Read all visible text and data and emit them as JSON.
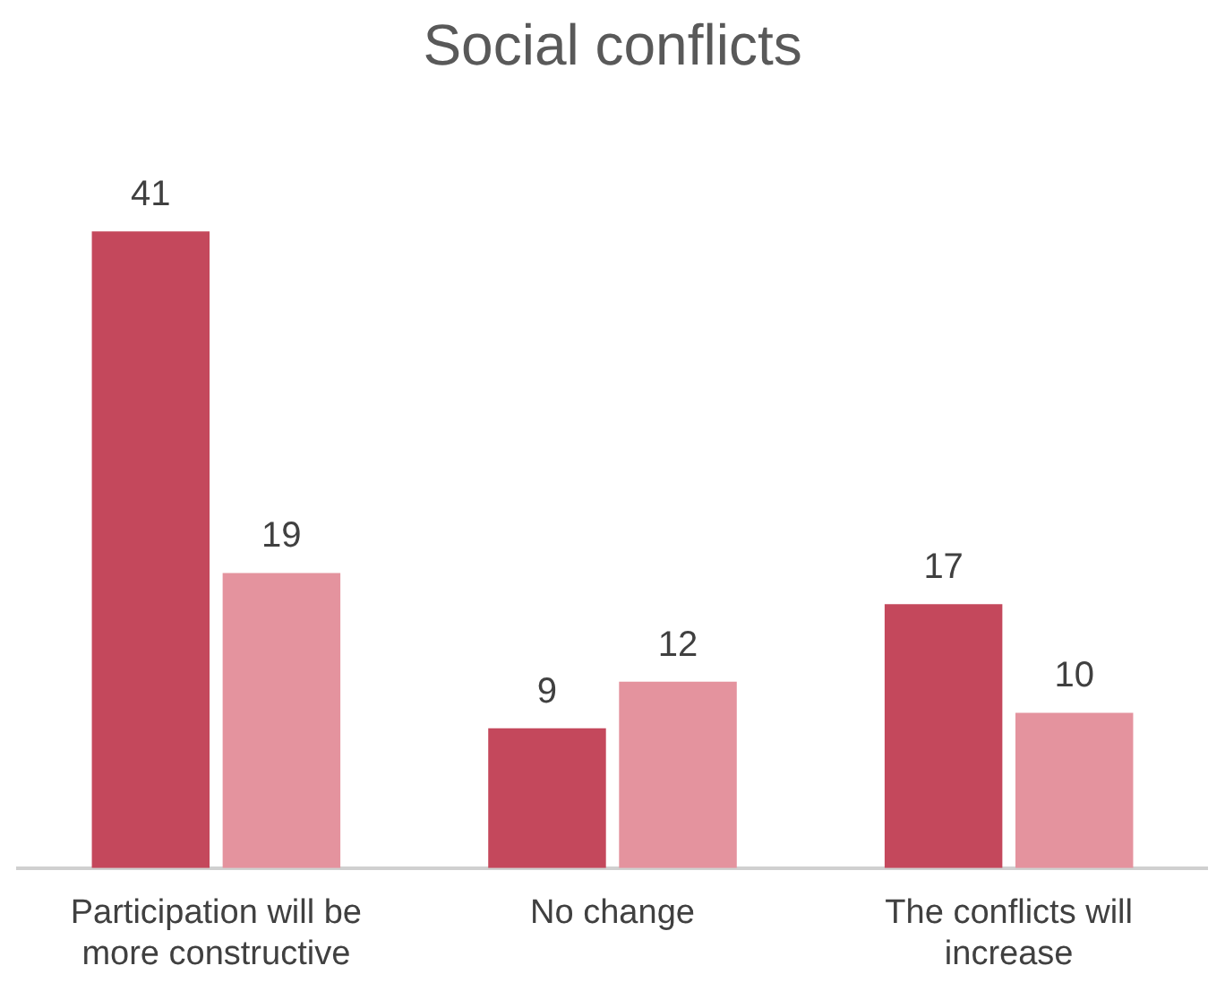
{
  "chart_data": {
    "type": "bar",
    "title": "Social conflicts",
    "categories": [
      "Participation will be more constructive",
      "No change",
      "The conflicts will increase"
    ],
    "series": [
      {
        "color": "#c4485c",
        "values": [
          41,
          9,
          17
        ]
      },
      {
        "color": "#e4939e",
        "values": [
          19,
          12,
          10
        ]
      }
    ],
    "data_labels": true,
    "grid": false,
    "legend": false
  }
}
